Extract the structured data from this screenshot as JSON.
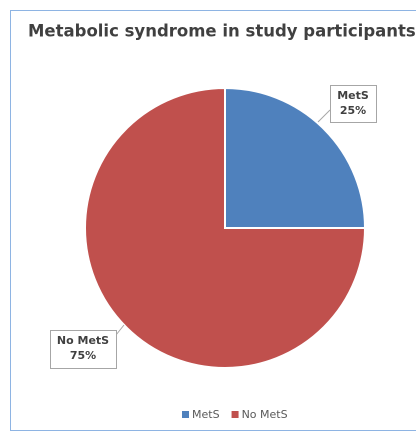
{
  "chart_data": {
    "type": "pie",
    "title": "Metabolic syndrome in study participants",
    "categories": [
      "MetS",
      "No MetS"
    ],
    "values": [
      25,
      75
    ],
    "value_labels": [
      "25%",
      "75%"
    ],
    "colors": [
      "#4f81bd",
      "#c0504d"
    ],
    "legend": "bottom"
  }
}
